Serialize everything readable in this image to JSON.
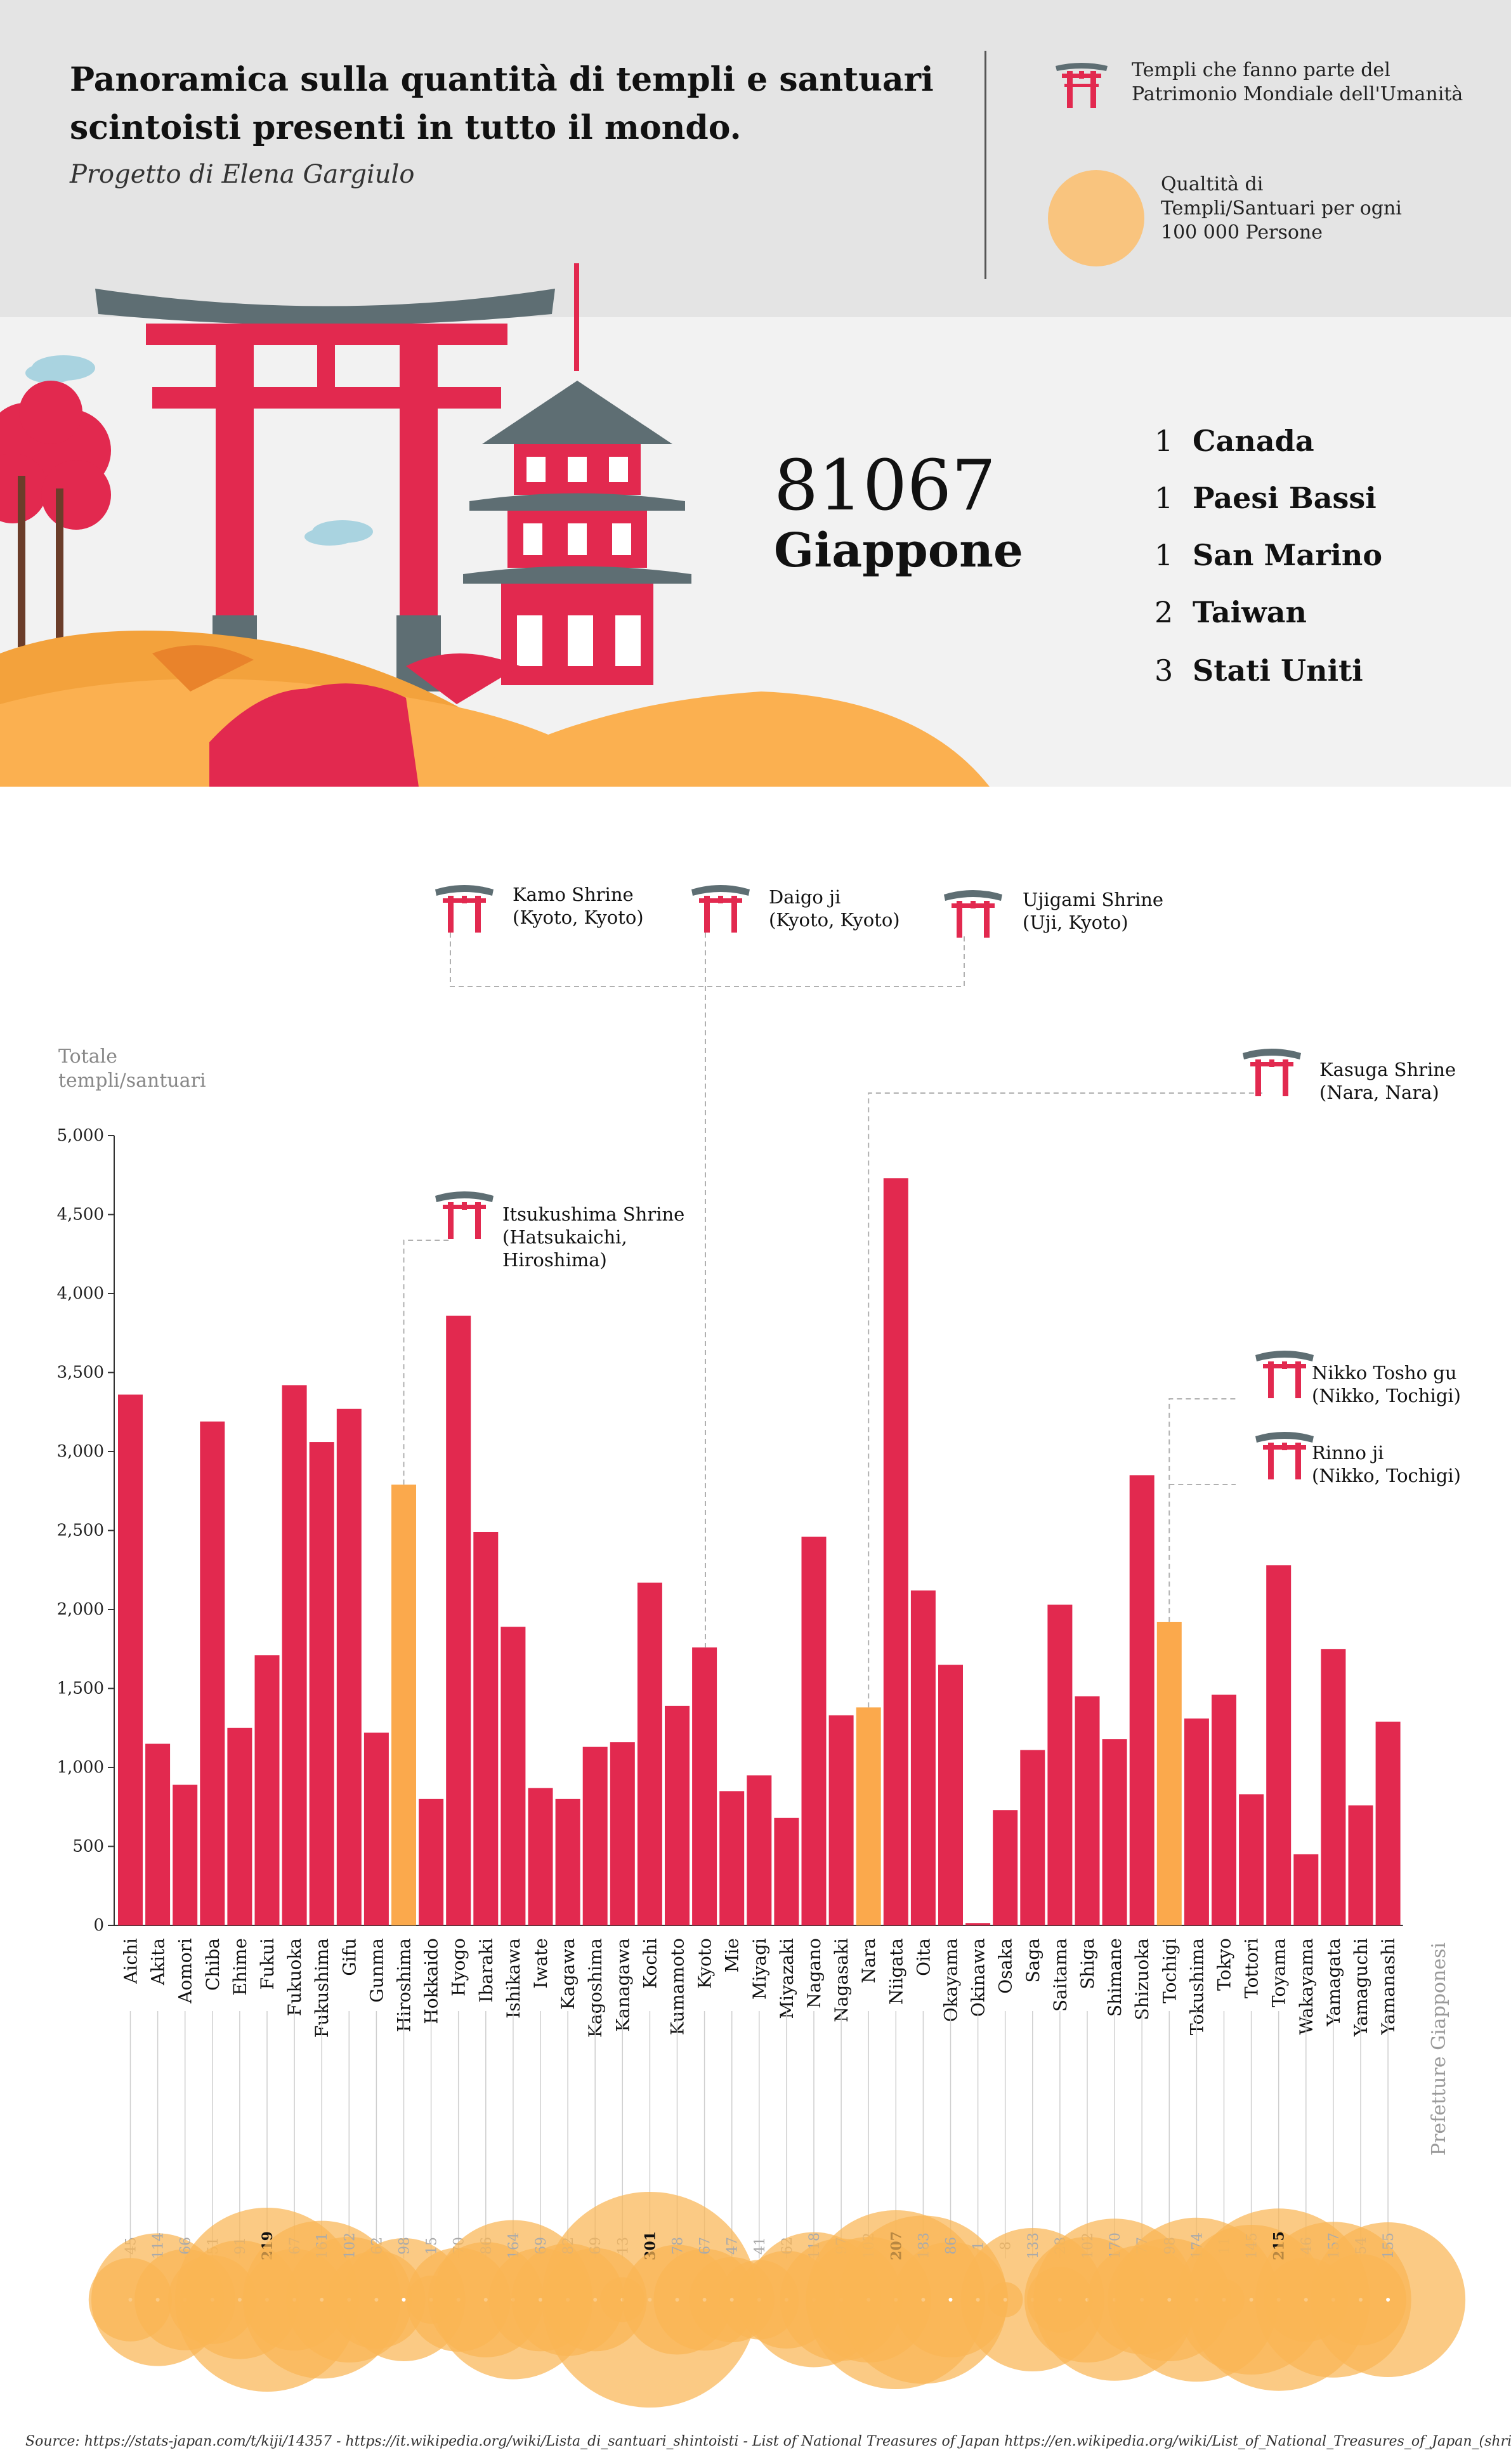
{
  "header": {
    "title": "Panoramica sulla quantità di templi e santuari scintoisti presenti in tutto il  mondo.",
    "subtitle": "Progetto di Elena Gargiulo",
    "legend_heritage": "Templi che fanno parte del Patrimonio Mondiale dell'Umanità",
    "legend_quality": "Qualtità di Templi/Santuari per ogni 100 000 Persone"
  },
  "hero": {
    "top_value": "81067",
    "top_country": "Giappone",
    "ranking": [
      {
        "num": "1",
        "name": "Canada"
      },
      {
        "num": "1",
        "name": "Paesi Bassi"
      },
      {
        "num": "1",
        "name": "San Marino"
      },
      {
        "num": "2",
        "name": "Taiwan"
      },
      {
        "num": "3",
        "name": "Stati Uniti"
      }
    ]
  },
  "callouts": [
    {
      "name": "Kamo Shrine",
      "place": "(Kyoto, Kyoto)"
    },
    {
      "name": "Daigo ji",
      "place": "(Kyoto, Kyoto)"
    },
    {
      "name": "Ujigami Shrine",
      "place": "(Uji, Kyoto)"
    },
    {
      "name": "Kasuga Shrine",
      "place": "(Nara, Nara)"
    },
    {
      "name": "Itsukushima Shrine",
      "place": "(Hatsukaichi, Hiroshima)"
    },
    {
      "name": "Nikko Tosho gu",
      "place": "(Nikko, Tochigi)"
    },
    {
      "name": "Rinno ji",
      "place": "(Nikko, Tochigi)"
    }
  ],
  "colors": {
    "bar": "#e2294f",
    "highlight": "#fba94c",
    "bubble": "#f9b554",
    "bubble_dark": "#f27a1a",
    "header_bg": "#e4e4e4",
    "hero_bg": "#f2f2f2"
  },
  "source": "Source:  https://stats-japan.com/t/kiji/14357 - https://it.wikipedia.org/wiki/Lista_di_santuari_shintoisti - List of National Treasures of Japan https://en.wikipedia.org/wiki/List_of_National_Treasures_of_Japan_(shrines)",
  "chart_data": {
    "type": "bar",
    "ylabel": "Totale templi/santuari",
    "xlabel": "Prefetture Giapponesi",
    "ylim": [
      0,
      5000
    ],
    "yticks": [
      0,
      500,
      1000,
      1500,
      2000,
      2500,
      3000,
      3500,
      4000,
      4500,
      5000
    ],
    "ytick_labels": [
      "0",
      "500",
      "1,000",
      "1,500",
      "2,000",
      "2,500",
      "3,000",
      "3,500",
      "4,000",
      "4,500",
      "5,000"
    ],
    "grid": false,
    "categories": [
      "Aichi",
      "Akita",
      "Aomori",
      "Chiba",
      "Ehime",
      "Fukui",
      "Fukuoka",
      "Fukushima",
      "Gifu",
      "Gunma",
      "Hiroshima",
      "Hokkaido",
      "Hyogo",
      "Ibaraki",
      "Ishikawa",
      "Iwate",
      "Kagawa",
      "Kagoshima",
      "Kanagawa",
      "Kochi",
      "Kumamoto",
      "Kyoto",
      "Mie",
      "Miyagi",
      "Miyazaki",
      "Nagano",
      "Nagasaki",
      "Nara",
      "Niigata",
      "Oita",
      "Okayama",
      "Okinawa",
      "Osaka",
      "Saga",
      "Saitama",
      "Shiga",
      "Shimane",
      "Shizuoka",
      "Tochigi",
      "Tokushima",
      "Tokyo",
      "Tottori",
      "Toyama",
      "Wakayama",
      "Yamagata",
      "Yamaguchi",
      "Yamanashi"
    ],
    "values": [
      3360,
      1150,
      890,
      3190,
      1250,
      1710,
      3420,
      3060,
      3270,
      1220,
      2790,
      800,
      3860,
      2490,
      1890,
      870,
      800,
      1130,
      1160,
      2170,
      1390,
      1760,
      850,
      950,
      680,
      2460,
      1330,
      1380,
      4730,
      2120,
      1650,
      15,
      730,
      1110,
      2030,
      1450,
      1180,
      2850,
      1920,
      1310,
      1460,
      830,
      2280,
      450,
      1750,
      760,
      1290
    ],
    "highlighted": [
      "Hiroshima",
      "Nara",
      "Tochigi"
    ],
    "per_100k": [
      45,
      114,
      66,
      51,
      91,
      219,
      67,
      161,
      102,
      62,
      98,
      15,
      70,
      86,
      164,
      69,
      82,
      69,
      13,
      301,
      78,
      67,
      47,
      41,
      62,
      118,
      97,
      102,
      207,
      183,
      86,
      1,
      8,
      133,
      28,
      102,
      170,
      77,
      98,
      174,
      11,
      145,
      215,
      46,
      157,
      54,
      155
    ]
  }
}
